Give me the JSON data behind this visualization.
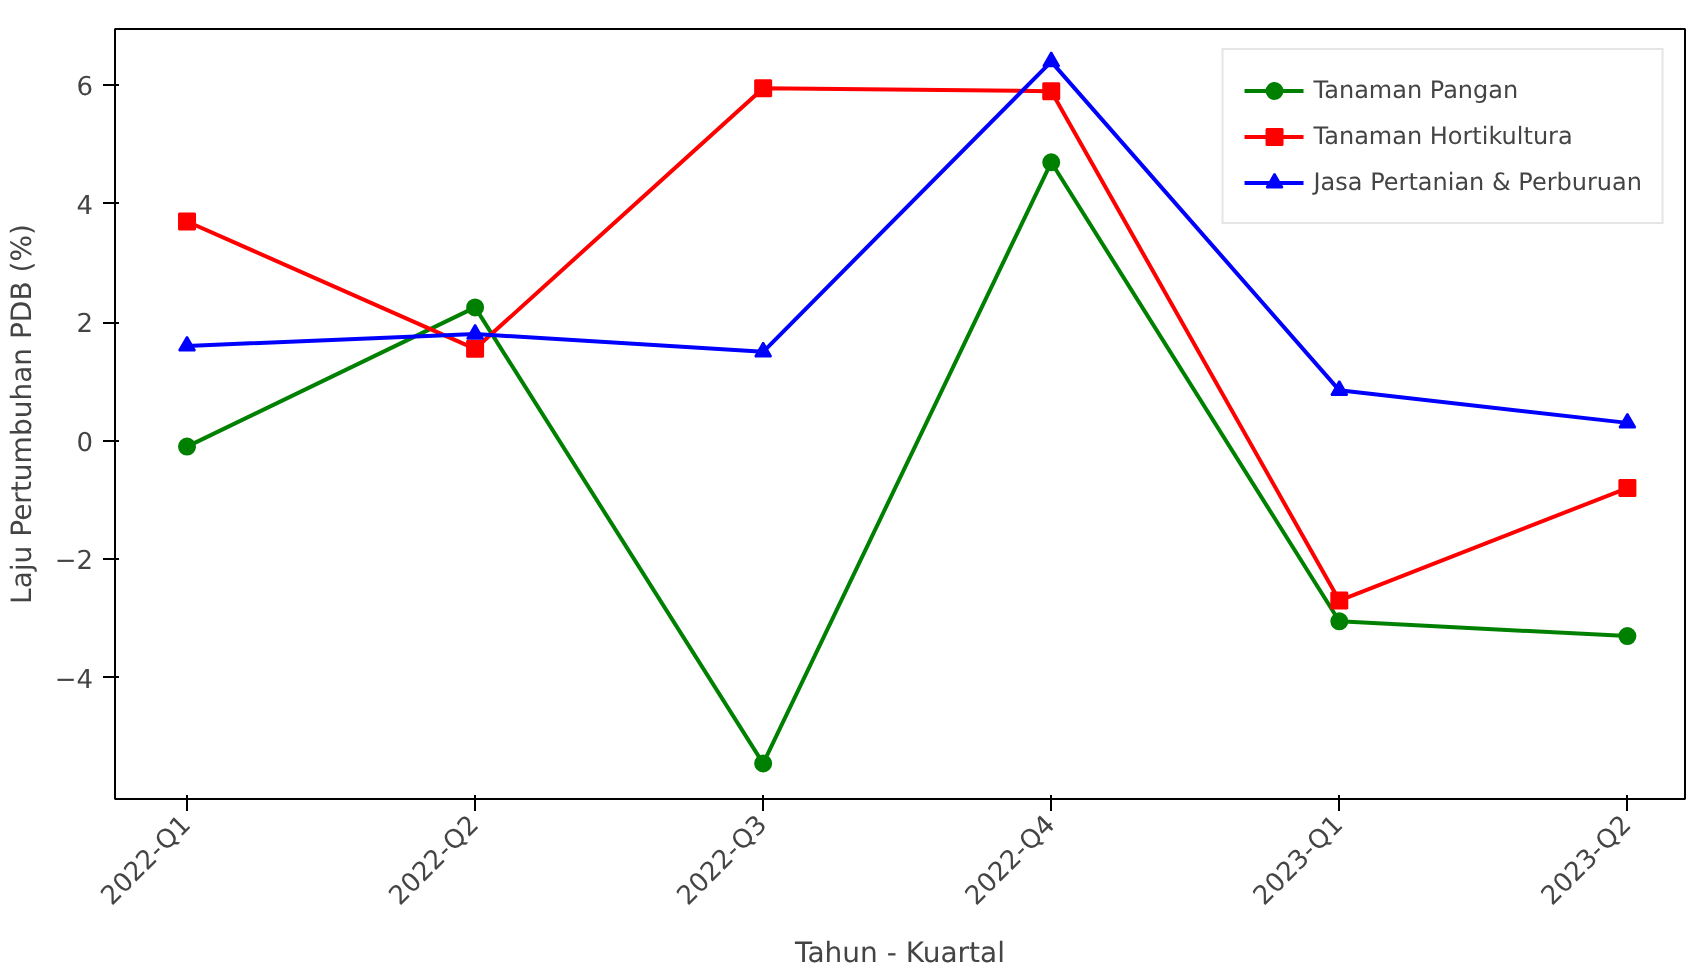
{
  "chart_data": {
    "type": "line",
    "xlabel": "Tahun - Kuartal",
    "ylabel": "Laju Pertumbuhan PDB (%)",
    "categories": [
      "2022-Q1",
      "2022-Q2",
      "2022-Q3",
      "2022-Q4",
      "2023-Q1",
      "2023-Q2"
    ],
    "series": [
      {
        "name": "Tanaman Pangan",
        "color": "#008000",
        "marker": "circle",
        "values": [
          -0.1,
          2.25,
          -5.45,
          4.7,
          -3.05,
          -3.3
        ]
      },
      {
        "name": "Tanaman Hortikultura",
        "color": "#ff0000",
        "marker": "square",
        "values": [
          3.7,
          1.55,
          5.95,
          5.9,
          -2.7,
          -0.8
        ]
      },
      {
        "name": "Jasa Pertanian & Perburuan",
        "color": "#0000ff",
        "marker": "triangle",
        "values": [
          1.6,
          1.8,
          1.5,
          6.4,
          0.85,
          0.3
        ]
      }
    ],
    "ylim": [
      -6.05,
      6.95
    ],
    "yticks": [
      -4,
      -2,
      0,
      2,
      4,
      6
    ],
    "grid": false,
    "legend": "top right",
    "line_style": "solid"
  }
}
